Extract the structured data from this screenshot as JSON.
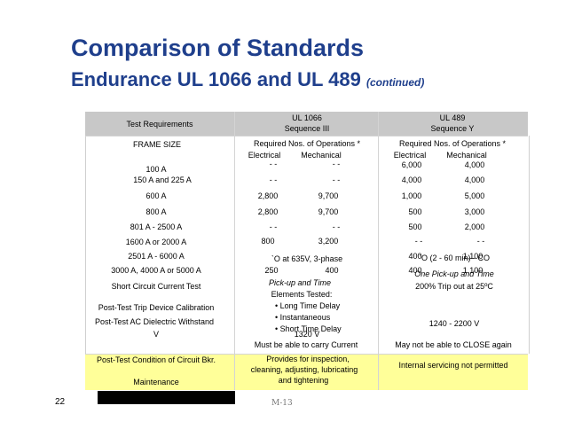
{
  "slide": {
    "title": "Comparison of Standards",
    "subtitle": "Endurance UL 1066 and UL 489",
    "subtitle_note": "(continued)",
    "page_number": "22",
    "footer_code": "M-13"
  },
  "header": {
    "test_requirements": "Test Requirements",
    "ul1066": "UL 1066",
    "ul1066_seq": "Sequence III",
    "ul489": "UL 489",
    "ul489_seq": "Sequence Y"
  },
  "subheader": {
    "frame_size": "FRAME SIZE",
    "required_ops": "Required Nos. of Operations *",
    "electrical": "Electrical",
    "mechanical": "Mechanical"
  },
  "rows": [
    {
      "frame": "100 A",
      "ul1066_e": "- -",
      "ul1066_m": "- -",
      "ul489_e": "6,000",
      "ul489_m": "4,000"
    },
    {
      "frame": "150 A and 225 A",
      "ul1066_e": "- -",
      "ul1066_m": "- -",
      "ul489_e": "4,000",
      "ul489_m": "4,000"
    },
    {
      "frame": "600 A",
      "ul1066_e": "2,800",
      "ul1066_m": "9,700",
      "ul489_e": "1,000",
      "ul489_m": "5,000"
    },
    {
      "frame": "800 A",
      "ul1066_e": "2,800",
      "ul1066_m": "9,700",
      "ul489_e": "500",
      "ul489_m": "3,000"
    },
    {
      "frame": "801 A - 2500 A",
      "ul1066_e": "- -",
      "ul1066_m": "- -",
      "ul489_e": "500",
      "ul489_m": "2,000"
    },
    {
      "frame": "1600 A  or  2000 A",
      "ul1066_e": "800",
      "ul1066_m": "3,200",
      "ul489_e": "- -",
      "ul489_m": "- -"
    },
    {
      "frame": "2501 A - 6000 A",
      "ul1066_e": "",
      "ul1066_m": "",
      "ul489_e": "400",
      "ul489_m": "1,100"
    },
    {
      "frame": "3000 A,  4000 A or 5000 A",
      "ul1066_e": "250",
      "ul1066_m": "400",
      "ul489_e": "400",
      "ul489_m": "1,100"
    }
  ],
  "overlays": {
    "ul1066_voltage": "`O at 635V, 3-phase",
    "ul489_o": "`O (2 - 60 min) - CO",
    "ul489_pickup": "One Pick-up and Time",
    "ul489_trip": "200% Trip out at 25ºC"
  },
  "tests": {
    "short_circuit": "Short Circuit Current Test",
    "trip_calibration": "Post-Test Trip Device Calibration",
    "dielectric_line1": "Post-Test AC Dielectric Withstand",
    "dielectric_line2": "V",
    "condition": "Post-Test Condition of Circuit Bkr.",
    "maintenance": "Maintenance"
  },
  "ul1066_tests": {
    "pickup": "Pick-up and Time",
    "elements_tested": "Elements Tested:",
    "long_time": "• Long Time Delay",
    "instantaneous": "• Instantaneous",
    "short_time": "• Short Time Delay",
    "voltage": "1320 V",
    "condition": "Must be able to carry Current",
    "maint_line1": "Provides for inspection,",
    "maint_line2": "cleaning, adjusting, lubricating",
    "maint_line3": "and tightening"
  },
  "ul489_tests": {
    "voltage": "1240 - 2200 V",
    "condition": "May not be able to CLOSE again",
    "maintenance": "Internal servicing not permitted"
  }
}
